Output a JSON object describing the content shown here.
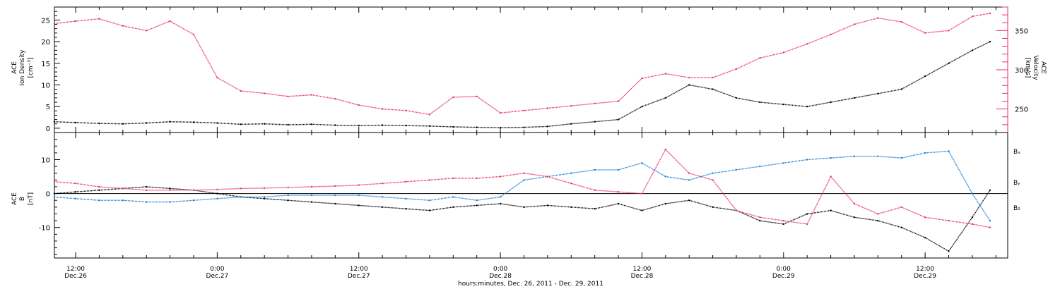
{
  "colors": {
    "black": "#000000",
    "pink": "#e8325f",
    "blue": "#1a7fd6"
  },
  "top_panel": {
    "left_axis_title_lines": [
      "ACE",
      "Ion Density",
      "[cm⁻³]"
    ],
    "right_axis_title_lines": [
      "ACE",
      "Velocity",
      "[km/s]"
    ]
  },
  "bottom_panel": {
    "left_axis_title_lines": [
      "ACE",
      "B",
      "[nT]"
    ],
    "legend": [
      "Bₓ",
      "Bᵧ",
      "B₂"
    ]
  },
  "x_axis": {
    "tick_labels": [
      {
        "time": "12:00",
        "date": "Dec.26"
      },
      {
        "time": "0:00",
        "date": "Dec.27"
      },
      {
        "time": "12:00",
        "date": "Dec.27"
      },
      {
        "time": "0:00",
        "date": "Dec.28"
      },
      {
        "time": "12:00",
        "date": "Dec.28"
      },
      {
        "time": "0:00",
        "date": "Dec.29"
      },
      {
        "time": "12:00",
        "date": "Dec.29"
      }
    ],
    "title": "hours:minutes, Dec. 26, 2011 - Dec. 29, 2011"
  },
  "chart_data": [
    {
      "type": "scatter",
      "x_unit": "hours since 2011-12-26 00:00",
      "xlim": [
        10.2,
        91.0
      ],
      "series": [
        {
          "name": "Ion Density",
          "axis": "left",
          "unit": "cm^-3",
          "ylim": [
            -1,
            28
          ],
          "yticks": [
            0,
            5,
            10,
            15,
            20,
            25
          ],
          "points": [
            [
              10.2,
              1.5
            ],
            [
              12,
              1.3
            ],
            [
              14,
              1.1
            ],
            [
              16,
              1.0
            ],
            [
              18,
              1.2
            ],
            [
              20,
              1.5
            ],
            [
              22,
              1.4
            ],
            [
              24,
              1.2
            ],
            [
              26,
              0.9
            ],
            [
              28,
              1.0
            ],
            [
              30,
              0.8
            ],
            [
              32,
              0.9
            ],
            [
              34,
              0.7
            ],
            [
              36,
              0.6
            ],
            [
              38,
              0.7
            ],
            [
              40,
              0.6
            ],
            [
              42,
              0.5
            ],
            [
              44,
              0.3
            ],
            [
              46,
              0.2
            ],
            [
              48,
              0.1
            ],
            [
              50,
              0.2
            ],
            [
              52,
              0.4
            ],
            [
              54,
              1.0
            ],
            [
              56,
              1.5
            ],
            [
              58,
              2.0
            ],
            [
              60,
              5.0
            ],
            [
              62,
              7.0
            ],
            [
              64,
              10.0
            ],
            [
              66,
              9.0
            ],
            [
              68,
              7.0
            ],
            [
              70,
              6.0
            ],
            [
              72,
              5.5
            ],
            [
              74,
              5.0
            ],
            [
              76,
              6.0
            ],
            [
              78,
              7.0
            ],
            [
              80,
              8.0
            ],
            [
              82,
              9.0
            ],
            [
              84,
              12.0
            ],
            [
              86,
              15.0
            ],
            [
              88,
              18.0
            ],
            [
              89.5,
              20.0
            ]
          ]
        },
        {
          "name": "Velocity",
          "axis": "right",
          "unit": "km/s",
          "ylim": [
            220,
            380
          ],
          "yticks": [
            250,
            300,
            350
          ],
          "points": [
            [
              10.2,
              359
            ],
            [
              12,
              362
            ],
            [
              14,
              365
            ],
            [
              16,
              356
            ],
            [
              18,
              350
            ],
            [
              20,
              362
            ],
            [
              22,
              345
            ],
            [
              24,
              290
            ],
            [
              26,
              273
            ],
            [
              28,
              270
            ],
            [
              30,
              266
            ],
            [
              32,
              268
            ],
            [
              34,
              263
            ],
            [
              36,
              255
            ],
            [
              38,
              250
            ],
            [
              40,
              248
            ],
            [
              42,
              243
            ],
            [
              44,
              265
            ],
            [
              46,
              266
            ],
            [
              48,
              245
            ],
            [
              50,
              248
            ],
            [
              52,
              251
            ],
            [
              54,
              254
            ],
            [
              56,
              257
            ],
            [
              58,
              260
            ],
            [
              60,
              289
            ],
            [
              62,
              295
            ],
            [
              64,
              290
            ],
            [
              66,
              290
            ],
            [
              68,
              301
            ],
            [
              70,
              315
            ],
            [
              72,
              322
            ],
            [
              74,
              333
            ],
            [
              76,
              345
            ],
            [
              78,
              358
            ],
            [
              80,
              366
            ],
            [
              82,
              361
            ],
            [
              84,
              347
            ],
            [
              86,
              350
            ],
            [
              88,
              368
            ],
            [
              89.5,
              372
            ]
          ]
        }
      ]
    },
    {
      "type": "scatter",
      "x_unit": "hours since 2011-12-26 00:00",
      "xlim": [
        10.2,
        91.0
      ],
      "ylim": [
        -19,
        18
      ],
      "yticks": [
        -10,
        0,
        10
      ],
      "series": [
        {
          "name": "Bₓ",
          "points": [
            [
              10.2,
              0.0
            ],
            [
              12,
              0.5
            ],
            [
              14,
              1.0
            ],
            [
              16,
              1.5
            ],
            [
              18,
              2.0
            ],
            [
              20,
              1.5
            ],
            [
              22,
              1.0
            ],
            [
              24,
              0.0
            ],
            [
              26,
              -1.0
            ],
            [
              28,
              -1.5
            ],
            [
              30,
              -2.0
            ],
            [
              32,
              -2.5
            ],
            [
              34,
              -3.0
            ],
            [
              36,
              -3.5
            ],
            [
              38,
              -4.0
            ],
            [
              40,
              -4.5
            ],
            [
              42,
              -5.0
            ],
            [
              44,
              -4.0
            ],
            [
              46,
              -3.5
            ],
            [
              48,
              -3.0
            ],
            [
              50,
              -4.0
            ],
            [
              52,
              -3.5
            ],
            [
              54,
              -4.0
            ],
            [
              56,
              -4.5
            ],
            [
              58,
              -3.0
            ],
            [
              60,
              -5.0
            ],
            [
              62,
              -3.0
            ],
            [
              64,
              -2.0
            ],
            [
              66,
              -4.0
            ],
            [
              68,
              -5.0
            ],
            [
              70,
              -8.0
            ],
            [
              72,
              -9.0
            ],
            [
              74,
              -6.0
            ],
            [
              76,
              -5.0
            ],
            [
              78,
              -7.0
            ],
            [
              80,
              -8.0
            ],
            [
              82,
              -10.0
            ],
            [
              84,
              -13.0
            ],
            [
              86,
              -17.0
            ],
            [
              88,
              -7.0
            ],
            [
              89.5,
              1.0
            ]
          ]
        },
        {
          "name": "Bᵧ",
          "points": [
            [
              10.2,
              -1.0
            ],
            [
              12,
              -1.5
            ],
            [
              14,
              -2.0
            ],
            [
              16,
              -2.0
            ],
            [
              18,
              -2.5
            ],
            [
              20,
              -2.5
            ],
            [
              22,
              -2.0
            ],
            [
              24,
              -1.5
            ],
            [
              26,
              -1.0
            ],
            [
              28,
              -1.0
            ],
            [
              30,
              -0.5
            ],
            [
              32,
              -0.5
            ],
            [
              34,
              -0.5
            ],
            [
              36,
              -0.5
            ],
            [
              38,
              -1.0
            ],
            [
              40,
              -1.5
            ],
            [
              42,
              -2.0
            ],
            [
              44,
              -1.0
            ],
            [
              46,
              -2.0
            ],
            [
              48,
              -1.0
            ],
            [
              50,
              4.0
            ],
            [
              52,
              5.0
            ],
            [
              54,
              6.0
            ],
            [
              56,
              7.0
            ],
            [
              58,
              7.0
            ],
            [
              60,
              9.0
            ],
            [
              62,
              5.0
            ],
            [
              64,
              4.0
            ],
            [
              66,
              6.0
            ],
            [
              68,
              7.0
            ],
            [
              70,
              8.0
            ],
            [
              72,
              9.0
            ],
            [
              74,
              10.0
            ],
            [
              76,
              10.5
            ],
            [
              78,
              11.0
            ],
            [
              80,
              11.0
            ],
            [
              82,
              10.5
            ],
            [
              84,
              12.0
            ],
            [
              86,
              12.5
            ],
            [
              88,
              0.0
            ],
            [
              89.5,
              -8.0
            ]
          ]
        },
        {
          "name": "B₂",
          "points": [
            [
              10.2,
              3.5
            ],
            [
              12,
              3.0
            ],
            [
              14,
              2.0
            ],
            [
              16,
              1.5
            ],
            [
              18,
              1.0
            ],
            [
              20,
              1.0
            ],
            [
              22,
              1.0
            ],
            [
              24,
              1.2
            ],
            [
              26,
              1.5
            ],
            [
              28,
              1.6
            ],
            [
              30,
              1.8
            ],
            [
              32,
              2.0
            ],
            [
              34,
              2.2
            ],
            [
              36,
              2.5
            ],
            [
              38,
              3.0
            ],
            [
              40,
              3.5
            ],
            [
              42,
              4.0
            ],
            [
              44,
              4.5
            ],
            [
              46,
              4.5
            ],
            [
              48,
              5.0
            ],
            [
              50,
              6.0
            ],
            [
              52,
              5.0
            ],
            [
              54,
              3.0
            ],
            [
              56,
              1.0
            ],
            [
              58,
              0.5
            ],
            [
              60,
              0.0
            ],
            [
              62,
              13.0
            ],
            [
              64,
              6.0
            ],
            [
              66,
              4.0
            ],
            [
              68,
              -5.0
            ],
            [
              70,
              -7.0
            ],
            [
              72,
              -8.0
            ],
            [
              74,
              -9.0
            ],
            [
              76,
              5.0
            ],
            [
              78,
              -3.0
            ],
            [
              80,
              -6.0
            ],
            [
              82,
              -4.0
            ],
            [
              84,
              -7.0
            ],
            [
              86,
              -8.0
            ],
            [
              88,
              -9.0
            ],
            [
              89.5,
              -10.0
            ]
          ]
        }
      ]
    }
  ]
}
